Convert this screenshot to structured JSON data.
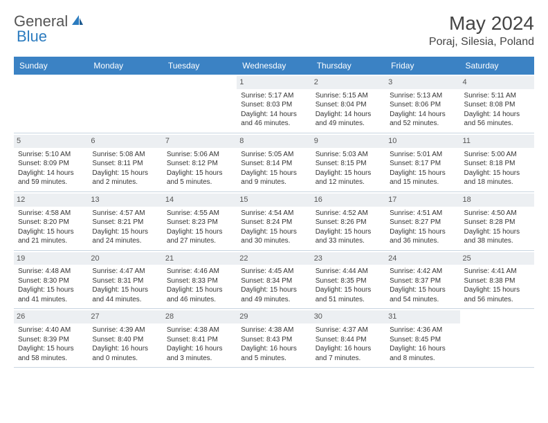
{
  "logo": {
    "text1": "General",
    "text2": "Blue"
  },
  "title": "May 2024",
  "location": "Poraj, Silesia, Poland",
  "colors": {
    "header_bg": "#3b82c4",
    "header_text": "#ffffff",
    "date_bg": "#eceff2",
    "border": "#c8d4e0",
    "body_text": "#333333",
    "logo_gray": "#555555",
    "logo_blue": "#2b7bbf"
  },
  "day_names": [
    "Sunday",
    "Monday",
    "Tuesday",
    "Wednesday",
    "Thursday",
    "Friday",
    "Saturday"
  ],
  "weeks": [
    [
      {
        "n": "",
        "lines": []
      },
      {
        "n": "",
        "lines": []
      },
      {
        "n": "",
        "lines": []
      },
      {
        "n": "1",
        "lines": [
          "Sunrise: 5:17 AM",
          "Sunset: 8:03 PM",
          "Daylight: 14 hours",
          "and 46 minutes."
        ]
      },
      {
        "n": "2",
        "lines": [
          "Sunrise: 5:15 AM",
          "Sunset: 8:04 PM",
          "Daylight: 14 hours",
          "and 49 minutes."
        ]
      },
      {
        "n": "3",
        "lines": [
          "Sunrise: 5:13 AM",
          "Sunset: 8:06 PM",
          "Daylight: 14 hours",
          "and 52 minutes."
        ]
      },
      {
        "n": "4",
        "lines": [
          "Sunrise: 5:11 AM",
          "Sunset: 8:08 PM",
          "Daylight: 14 hours",
          "and 56 minutes."
        ]
      }
    ],
    [
      {
        "n": "5",
        "lines": [
          "Sunrise: 5:10 AM",
          "Sunset: 8:09 PM",
          "Daylight: 14 hours",
          "and 59 minutes."
        ]
      },
      {
        "n": "6",
        "lines": [
          "Sunrise: 5:08 AM",
          "Sunset: 8:11 PM",
          "Daylight: 15 hours",
          "and 2 minutes."
        ]
      },
      {
        "n": "7",
        "lines": [
          "Sunrise: 5:06 AM",
          "Sunset: 8:12 PM",
          "Daylight: 15 hours",
          "and 5 minutes."
        ]
      },
      {
        "n": "8",
        "lines": [
          "Sunrise: 5:05 AM",
          "Sunset: 8:14 PM",
          "Daylight: 15 hours",
          "and 9 minutes."
        ]
      },
      {
        "n": "9",
        "lines": [
          "Sunrise: 5:03 AM",
          "Sunset: 8:15 PM",
          "Daylight: 15 hours",
          "and 12 minutes."
        ]
      },
      {
        "n": "10",
        "lines": [
          "Sunrise: 5:01 AM",
          "Sunset: 8:17 PM",
          "Daylight: 15 hours",
          "and 15 minutes."
        ]
      },
      {
        "n": "11",
        "lines": [
          "Sunrise: 5:00 AM",
          "Sunset: 8:18 PM",
          "Daylight: 15 hours",
          "and 18 minutes."
        ]
      }
    ],
    [
      {
        "n": "12",
        "lines": [
          "Sunrise: 4:58 AM",
          "Sunset: 8:20 PM",
          "Daylight: 15 hours",
          "and 21 minutes."
        ]
      },
      {
        "n": "13",
        "lines": [
          "Sunrise: 4:57 AM",
          "Sunset: 8:21 PM",
          "Daylight: 15 hours",
          "and 24 minutes."
        ]
      },
      {
        "n": "14",
        "lines": [
          "Sunrise: 4:55 AM",
          "Sunset: 8:23 PM",
          "Daylight: 15 hours",
          "and 27 minutes."
        ]
      },
      {
        "n": "15",
        "lines": [
          "Sunrise: 4:54 AM",
          "Sunset: 8:24 PM",
          "Daylight: 15 hours",
          "and 30 minutes."
        ]
      },
      {
        "n": "16",
        "lines": [
          "Sunrise: 4:52 AM",
          "Sunset: 8:26 PM",
          "Daylight: 15 hours",
          "and 33 minutes."
        ]
      },
      {
        "n": "17",
        "lines": [
          "Sunrise: 4:51 AM",
          "Sunset: 8:27 PM",
          "Daylight: 15 hours",
          "and 36 minutes."
        ]
      },
      {
        "n": "18",
        "lines": [
          "Sunrise: 4:50 AM",
          "Sunset: 8:28 PM",
          "Daylight: 15 hours",
          "and 38 minutes."
        ]
      }
    ],
    [
      {
        "n": "19",
        "lines": [
          "Sunrise: 4:48 AM",
          "Sunset: 8:30 PM",
          "Daylight: 15 hours",
          "and 41 minutes."
        ]
      },
      {
        "n": "20",
        "lines": [
          "Sunrise: 4:47 AM",
          "Sunset: 8:31 PM",
          "Daylight: 15 hours",
          "and 44 minutes."
        ]
      },
      {
        "n": "21",
        "lines": [
          "Sunrise: 4:46 AM",
          "Sunset: 8:33 PM",
          "Daylight: 15 hours",
          "and 46 minutes."
        ]
      },
      {
        "n": "22",
        "lines": [
          "Sunrise: 4:45 AM",
          "Sunset: 8:34 PM",
          "Daylight: 15 hours",
          "and 49 minutes."
        ]
      },
      {
        "n": "23",
        "lines": [
          "Sunrise: 4:44 AM",
          "Sunset: 8:35 PM",
          "Daylight: 15 hours",
          "and 51 minutes."
        ]
      },
      {
        "n": "24",
        "lines": [
          "Sunrise: 4:42 AM",
          "Sunset: 8:37 PM",
          "Daylight: 15 hours",
          "and 54 minutes."
        ]
      },
      {
        "n": "25",
        "lines": [
          "Sunrise: 4:41 AM",
          "Sunset: 8:38 PM",
          "Daylight: 15 hours",
          "and 56 minutes."
        ]
      }
    ],
    [
      {
        "n": "26",
        "lines": [
          "Sunrise: 4:40 AM",
          "Sunset: 8:39 PM",
          "Daylight: 15 hours",
          "and 58 minutes."
        ]
      },
      {
        "n": "27",
        "lines": [
          "Sunrise: 4:39 AM",
          "Sunset: 8:40 PM",
          "Daylight: 16 hours",
          "and 0 minutes."
        ]
      },
      {
        "n": "28",
        "lines": [
          "Sunrise: 4:38 AM",
          "Sunset: 8:41 PM",
          "Daylight: 16 hours",
          "and 3 minutes."
        ]
      },
      {
        "n": "29",
        "lines": [
          "Sunrise: 4:38 AM",
          "Sunset: 8:43 PM",
          "Daylight: 16 hours",
          "and 5 minutes."
        ]
      },
      {
        "n": "30",
        "lines": [
          "Sunrise: 4:37 AM",
          "Sunset: 8:44 PM",
          "Daylight: 16 hours",
          "and 7 minutes."
        ]
      },
      {
        "n": "31",
        "lines": [
          "Sunrise: 4:36 AM",
          "Sunset: 8:45 PM",
          "Daylight: 16 hours",
          "and 8 minutes."
        ]
      },
      {
        "n": "",
        "lines": []
      }
    ]
  ]
}
